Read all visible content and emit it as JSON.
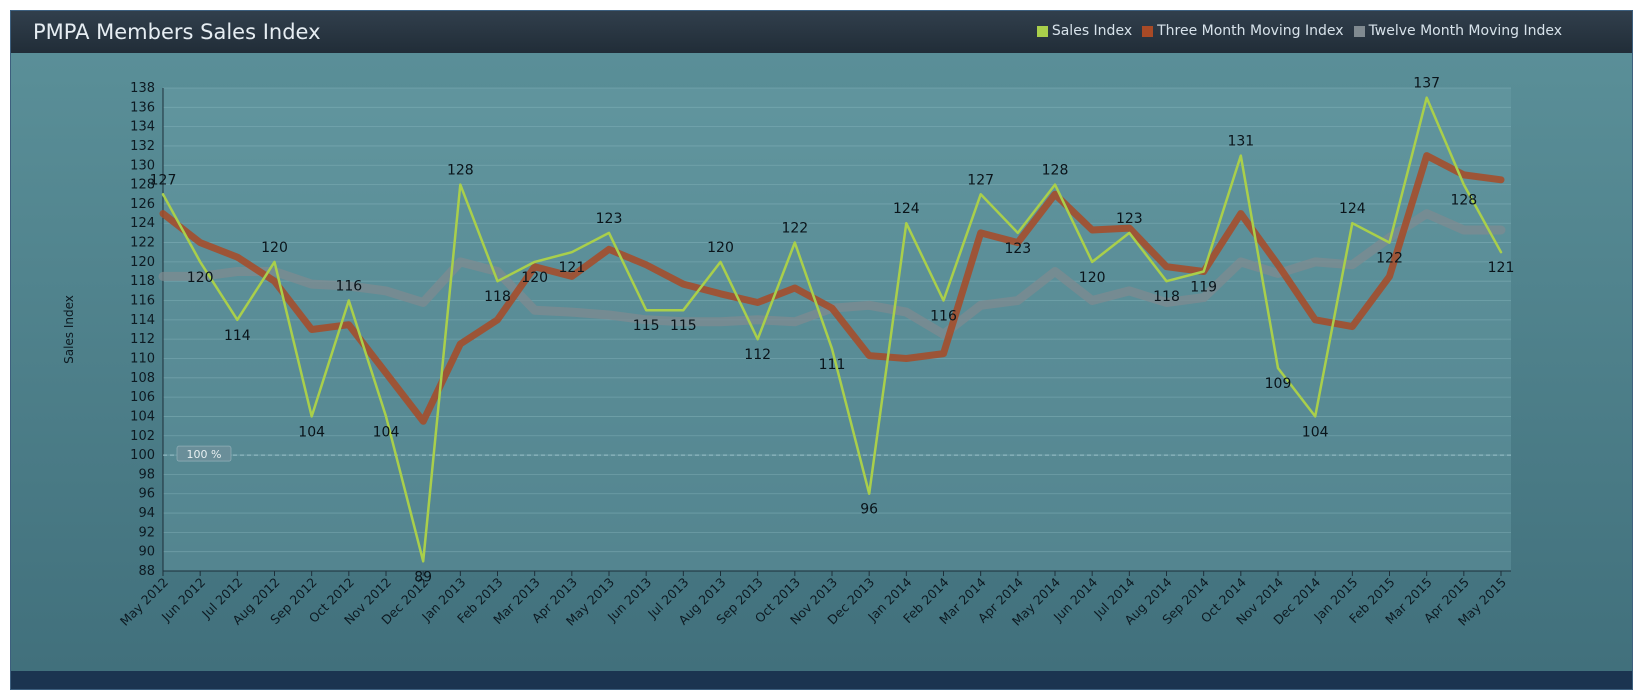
{
  "window": {
    "title": "PMPA Members Sales Index"
  },
  "legend": [
    {
      "label": "Sales Index",
      "color": "#a9cf4b"
    },
    {
      "label": "Three Month Moving Index",
      "color": "#a84a26"
    },
    {
      "label": "Twelve Month Moving Index",
      "color": "#808a90"
    }
  ],
  "chart_data": {
    "type": "line",
    "title": "PMPA Members Sales Index",
    "xlabel": "",
    "ylabel": "Sales Index",
    "ylim": [
      88,
      138
    ],
    "ytick_step": 2,
    "reference_line": {
      "value": 100,
      "label": "100 %"
    },
    "categories": [
      "May 2012",
      "Jun 2012",
      "Jul 2012",
      "Aug 2012",
      "Sep 2012",
      "Oct 2012",
      "Nov 2012",
      "Dec 2012",
      "Jan 2013",
      "Feb 2013",
      "Mar 2013",
      "Apr 2013",
      "May 2013",
      "Jun 2013",
      "Jul 2013",
      "Aug 2013",
      "Sep 2013",
      "Oct 2013",
      "Nov 2013",
      "Dec 2013",
      "Jan 2014",
      "Feb 2014",
      "Mar 2014",
      "Apr 2014",
      "May 2014",
      "Jun 2014",
      "Jul 2014",
      "Aug 2014",
      "Sep 2014",
      "Oct 2014",
      "Nov 2014",
      "Dec 2014",
      "Jan 2015",
      "Feb 2015",
      "Mar 2015",
      "Apr 2015",
      "May 2015"
    ],
    "series": [
      {
        "name": "Sales Index",
        "color": "#a9cf4b",
        "labeled": true,
        "values": [
          127,
          120,
          114,
          120,
          104,
          116,
          104,
          89,
          128,
          118,
          120,
          121,
          123,
          115,
          115,
          120,
          112,
          122,
          111,
          96,
          124,
          116,
          127,
          123,
          128,
          120,
          123,
          118,
          119,
          131,
          109,
          104,
          124,
          122,
          137,
          128,
          121
        ]
      },
      {
        "name": "Three Month Moving Index",
        "color": "#a84a26",
        "labeled": false,
        "values": [
          125,
          122,
          120.5,
          118,
          113,
          113.5,
          108.5,
          103.5,
          111.5,
          114,
          119.5,
          118.5,
          121.3,
          119.7,
          117.7,
          116.7,
          115.8,
          117.3,
          115.2,
          110.3,
          110,
          110.5,
          123,
          122,
          127,
          123.3,
          123.5,
          119.5,
          119,
          125,
          119.7,
          114,
          113.3,
          118.5,
          131,
          129,
          128.5
        ]
      },
      {
        "name": "Twelve Month Moving Index",
        "color": "#808a90",
        "labeled": false,
        "values": [
          118.5,
          118.5,
          119,
          119,
          117.7,
          117.5,
          117,
          115.8,
          120,
          119,
          115,
          114.8,
          114.5,
          114,
          113.8,
          113.8,
          114,
          113.8,
          115.2,
          115.5,
          114.8,
          112.5,
          115.5,
          116,
          119,
          116,
          117,
          115.8,
          116.3,
          120,
          118.8,
          120,
          119.7,
          122.5,
          125,
          123.3,
          123.3
        ]
      }
    ]
  }
}
